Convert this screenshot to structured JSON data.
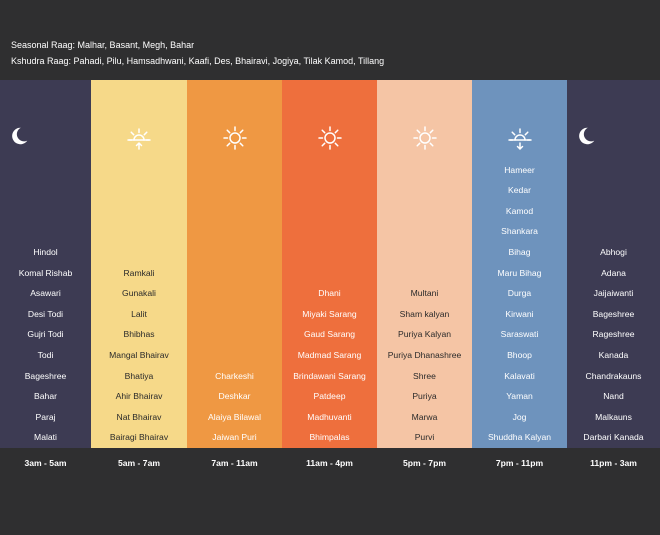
{
  "header": {
    "seasonal": "Seasonal Raag: Malhar, Basant, Megh, Bahar",
    "kshudra": "Kshudra Raag: Pahadi, Pilu, Hamsadhwani, Kaafi, Des, Bhairavi, Jogiya, Tilak Kamod, Tillang"
  },
  "columns": [
    {
      "time": "3am - 5am",
      "icon": "moon-icon",
      "color": "#3d3b53",
      "text_color": "#ffffff",
      "raags": [
        "Hindol",
        "Komal Rishab",
        "Asawari",
        "Desi Todi",
        "Gujri Todi",
        "Todi",
        "Bageshree",
        "Bahar",
        "Paraj",
        "Malati"
      ]
    },
    {
      "time": "5am - 7am",
      "icon": "sunrise-icon",
      "color": "#f6d989",
      "text_color": "#2a2a2a",
      "raags": [
        "Ramkali",
        "Gunakali",
        "Lalit",
        "Bhibhas",
        "Mangal Bhairav",
        "Bhatiya",
        "Ahir Bhairav",
        "Nat Bhairav",
        "Bairagi Bhairav"
      ]
    },
    {
      "time": "7am - 11am",
      "icon": "sun-icon",
      "color": "#ef9843",
      "text_color": "#ffffff",
      "raags": [
        "Charkeshi",
        "Deshkar",
        "Alaiya Bilawal",
        "Jaiwan Puri"
      ]
    },
    {
      "time": "11am - 4pm",
      "icon": "sun-icon",
      "color": "#ee6f3d",
      "text_color": "#ffffff",
      "raags": [
        "Dhani",
        "Miyaki Sarang",
        "Gaud Sarang",
        "Madmad Sarang",
        "Brindawani Sarang",
        "Patdeep",
        "Madhuvanti",
        "Bhimpalas"
      ]
    },
    {
      "time": "5pm - 7pm",
      "icon": "sun-icon",
      "color": "#f5c5a5",
      "text_color": "#2a2a2a",
      "raags": [
        "Multani",
        "Sham kalyan",
        "Puriya Kalyan",
        "Puriya Dhanashree",
        "Shree",
        "Puriya",
        "Marwa",
        "Purvi"
      ]
    },
    {
      "time": "7pm - 11pm",
      "icon": "sunset-icon",
      "color": "#6e93bd",
      "text_color": "#ffffff",
      "raags": [
        "Hameer",
        "Kedar",
        "Kamod",
        "Shankara",
        "Bihag",
        "Maru Bihag",
        "Durga",
        "Kirwani",
        "Saraswati",
        "Bhoop",
        "Kalavati",
        "Yaman",
        "Jog",
        "Shuddha Kalyan"
      ]
    },
    {
      "time": "11pm - 3am",
      "icon": "moon-icon",
      "color": "#3d3b53",
      "text_color": "#ffffff",
      "raags": [
        "Abhogi",
        "Adana",
        "Jaijaiwanti",
        "Bageshree",
        "Rageshree",
        "Kanada",
        "Chandrakauns",
        "Nand",
        "Malkauns",
        "Darbari Kanada"
      ]
    }
  ]
}
